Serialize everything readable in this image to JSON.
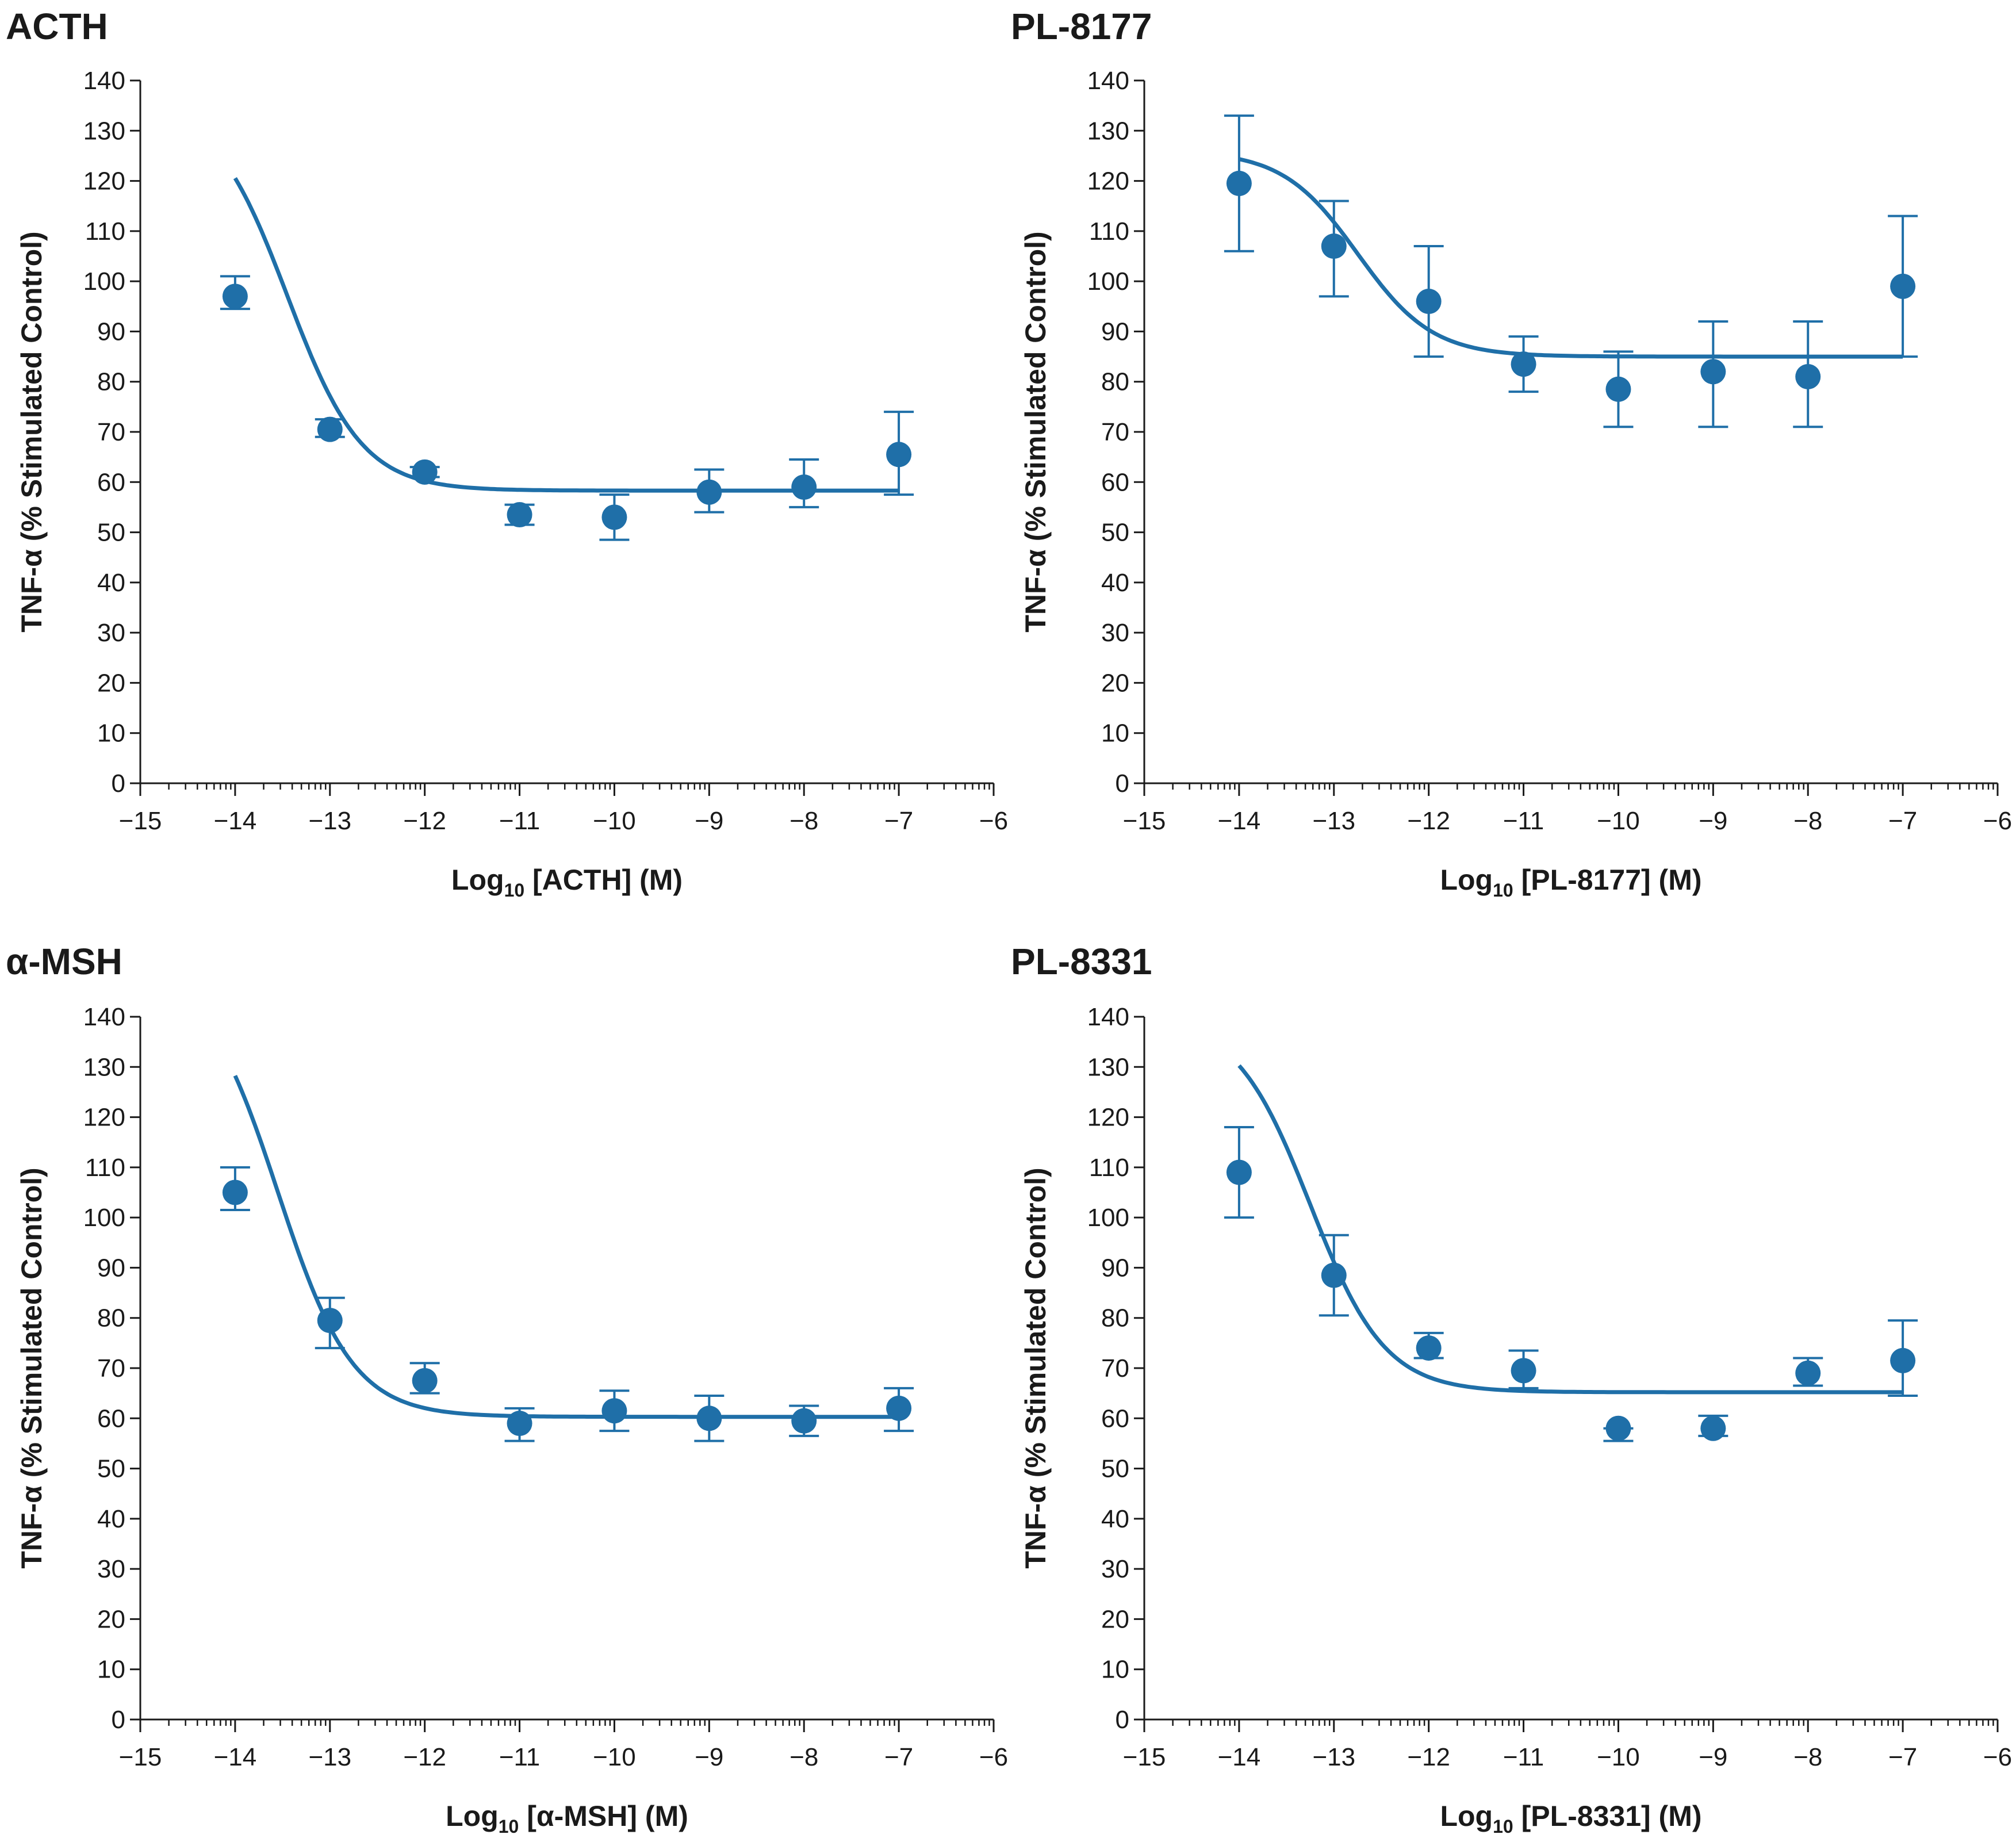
{
  "chart_data": [
    {
      "type": "scatter",
      "title": "ACTH",
      "xlabel_prefix": "Log",
      "xlabel_sub": "10",
      "xlabel_suffix": " [ACTH] (M)",
      "ylabel": "TNF-α (% Stimulated Control)",
      "xlim": [
        -15,
        -6
      ],
      "ylim": [
        0,
        140
      ],
      "xticks": [
        -15,
        -14,
        -13,
        -12,
        -11,
        -10,
        -9,
        -8,
        -7,
        -6
      ],
      "xtick_labels": [
        "−15",
        "−14",
        "−13",
        "−12",
        "−11",
        "−10",
        "−9",
        "−8",
        "−7",
        "−6"
      ],
      "yticks": [
        0,
        10,
        20,
        30,
        40,
        50,
        60,
        70,
        80,
        90,
        100,
        110,
        120,
        130,
        140
      ],
      "ytick_labels": [
        "0",
        "10",
        "20",
        "30",
        "40",
        "50",
        "60",
        "70",
        "80",
        "90",
        "100",
        "110",
        "120",
        "130",
        "140"
      ],
      "x": [
        -14,
        -13,
        -12,
        -11,
        -10,
        -9,
        -8,
        -7
      ],
      "y": [
        97,
        70.5,
        62,
        53.5,
        53,
        58,
        59,
        65.5
      ],
      "err_low": [
        94.5,
        69,
        61,
        51.5,
        48.5,
        54,
        55,
        57.5
      ],
      "err_high": [
        101,
        72.5,
        63,
        55.5,
        57.5,
        62.5,
        64.5,
        74
      ],
      "fit": {
        "top": 136,
        "bottom": 58.3,
        "logEC50": -13.45,
        "hill": -1.1
      },
      "color": "#1f6fa8"
    },
    {
      "type": "scatter",
      "title": "PL-8177",
      "xlabel_prefix": "Log",
      "xlabel_sub": "10",
      "xlabel_suffix": " [PL-8177] (M)",
      "ylabel": "TNF-α (% Stimulated Control)",
      "xlim": [
        -15,
        -6
      ],
      "ylim": [
        0,
        140
      ],
      "xticks": [
        -15,
        -14,
        -13,
        -12,
        -11,
        -10,
        -9,
        -8,
        -7,
        -6
      ],
      "xtick_labels": [
        "−15",
        "−14",
        "−13",
        "−12",
        "−11",
        "−10",
        "−9",
        "−8",
        "−7",
        "−6"
      ],
      "yticks": [
        0,
        10,
        20,
        30,
        40,
        50,
        60,
        70,
        80,
        90,
        100,
        110,
        120,
        130,
        140
      ],
      "ytick_labels": [
        "0",
        "10",
        "20",
        "30",
        "40",
        "50",
        "60",
        "70",
        "80",
        "90",
        "100",
        "110",
        "120",
        "130",
        "140"
      ],
      "x": [
        -14,
        -13,
        -12,
        -11,
        -10,
        -9,
        -8,
        -7
      ],
      "y": [
        119.5,
        107,
        96,
        83.5,
        78.5,
        82,
        81,
        99
      ],
      "err_low": [
        106,
        97,
        85,
        78,
        71,
        71,
        71,
        85
      ],
      "err_high": [
        133,
        116,
        107,
        89,
        86,
        92,
        92,
        113
      ],
      "fit": {
        "top": 126,
        "bottom": 85,
        "logEC50": -12.75,
        "hill": -1.1
      },
      "color": "#1f6fa8"
    },
    {
      "type": "scatter",
      "title": "α-MSH",
      "xlabel_prefix": "Log",
      "xlabel_sub": "10",
      "xlabel_suffix": " [α-MSH] (M)",
      "ylabel": "TNF-α (% Stimulated Control)",
      "xlim": [
        -15,
        -6
      ],
      "ylim": [
        0,
        140
      ],
      "xticks": [
        -15,
        -14,
        -13,
        -12,
        -11,
        -10,
        -9,
        -8,
        -7,
        -6
      ],
      "xtick_labels": [
        "−15",
        "−14",
        "−13",
        "−12",
        "−11",
        "−10",
        "−9",
        "−8",
        "−7",
        "−6"
      ],
      "yticks": [
        0,
        10,
        20,
        30,
        40,
        50,
        60,
        70,
        80,
        90,
        100,
        110,
        120,
        130,
        140
      ],
      "ytick_labels": [
        "0",
        "10",
        "20",
        "30",
        "40",
        "50",
        "60",
        "70",
        "80",
        "90",
        "100",
        "110",
        "120",
        "130",
        "140"
      ],
      "x": [
        -14,
        -13,
        -12,
        -11,
        -10,
        -9,
        -8,
        -7
      ],
      "y": [
        105,
        79.5,
        67.5,
        59,
        61.5,
        60,
        59.5,
        62
      ],
      "err_low": [
        101.5,
        74,
        65,
        55.5,
        57.5,
        55.5,
        56.5,
        57.5
      ],
      "err_high": [
        110,
        84,
        71,
        62,
        65.5,
        64.5,
        62.5,
        66
      ],
      "fit": {
        "top": 150,
        "bottom": 60.3,
        "logEC50": -13.55,
        "hill": -1.1
      },
      "color": "#1f6fa8"
    },
    {
      "type": "scatter",
      "title": "PL-8331",
      "xlabel_prefix": "Log",
      "xlabel_sub": "10",
      "xlabel_suffix": " [PL-8331] (M)",
      "ylabel": "TNF-α (% Stimulated Control)",
      "xlim": [
        -15,
        -6
      ],
      "ylim": [
        0,
        140
      ],
      "xticks": [
        -15,
        -14,
        -13,
        -12,
        -11,
        -10,
        -9,
        -8,
        -7,
        -6
      ],
      "xtick_labels": [
        "−15",
        "−14",
        "−13",
        "−12",
        "−11",
        "−10",
        "−9",
        "−8",
        "−7",
        "−6"
      ],
      "yticks": [
        0,
        10,
        20,
        30,
        40,
        50,
        60,
        70,
        80,
        90,
        100,
        110,
        120,
        130,
        140
      ],
      "ytick_labels": [
        "0",
        "10",
        "20",
        "30",
        "40",
        "50",
        "60",
        "70",
        "80",
        "90",
        "100",
        "110",
        "120",
        "130",
        "140"
      ],
      "x": [
        -14,
        -13,
        -12,
        -11,
        -10,
        -9,
        -8,
        -7
      ],
      "y": [
        109,
        88.5,
        74,
        69.5,
        58,
        58,
        69,
        71.5
      ],
      "err_low": [
        100,
        80.5,
        72,
        66,
        55.5,
        56.5,
        66.5,
        64.5
      ],
      "err_high": [
        118,
        96.5,
        77,
        73.5,
        58,
        60.5,
        72,
        79.5
      ],
      "fit": {
        "top": 140,
        "bottom": 65.2,
        "logEC50": -13.25,
        "hill": -1.1
      },
      "color": "#1f6fa8"
    }
  ]
}
